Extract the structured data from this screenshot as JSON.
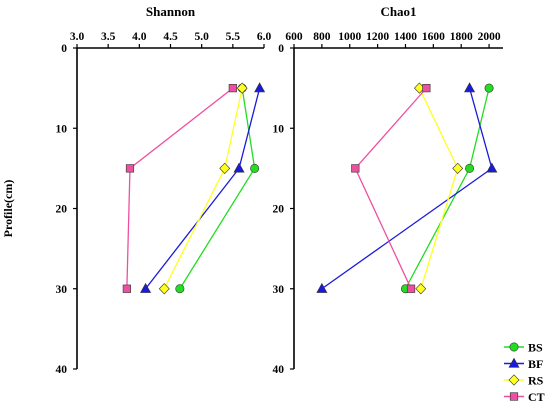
{
  "chart_data": [
    {
      "type": "line",
      "title": "Shannon",
      "ylabel": "Profile(cm)",
      "xlim": [
        3.0,
        6.0
      ],
      "x_ticks": [
        "3.0",
        "3.5",
        "4.0",
        "4.5",
        "5.0",
        "5.5",
        "6.0"
      ],
      "ylim": [
        0,
        40
      ],
      "y_ticks": [
        "0",
        "10",
        "20",
        "30",
        "40"
      ],
      "y_inverted": true,
      "x_axis_position": "top",
      "series": [
        {
          "name": "BS",
          "color": "#22dd22",
          "marker": "circle",
          "points": [
            {
              "x": 5.65,
              "y": 5
            },
            {
              "x": 5.85,
              "y": 15
            },
            {
              "x": 4.65,
              "y": 30
            }
          ]
        },
        {
          "name": "BF",
          "color": "#1a1adb",
          "marker": "triangle",
          "points": [
            {
              "x": 5.93,
              "y": 5
            },
            {
              "x": 5.6,
              "y": 15
            },
            {
              "x": 4.1,
              "y": 30
            }
          ]
        },
        {
          "name": "RS",
          "color": "#ffff22",
          "marker": "diamond",
          "points": [
            {
              "x": 5.65,
              "y": 5
            },
            {
              "x": 5.37,
              "y": 15
            },
            {
              "x": 4.4,
              "y": 30
            }
          ]
        },
        {
          "name": "CT",
          "color": "#ee4fa0",
          "marker": "square",
          "points": [
            {
              "x": 5.5,
              "y": 5
            },
            {
              "x": 3.85,
              "y": 15
            },
            {
              "x": 3.8,
              "y": 30
            }
          ]
        }
      ]
    },
    {
      "type": "line",
      "title": "Chao1",
      "xlim": [
        600,
        2100
      ],
      "x_ticks": [
        "600",
        "800",
        "1000",
        "1200",
        "1400",
        "1600",
        "1800",
        "2000"
      ],
      "ylim": [
        0,
        40
      ],
      "y_ticks": [
        "0",
        "10",
        "20",
        "30",
        "40"
      ],
      "y_inverted": true,
      "x_axis_position": "top",
      "series": [
        {
          "name": "BS",
          "color": "#22dd22",
          "marker": "circle",
          "points": [
            {
              "x": 2000,
              "y": 5
            },
            {
              "x": 1860,
              "y": 15
            },
            {
              "x": 1400,
              "y": 30
            }
          ]
        },
        {
          "name": "BF",
          "color": "#1a1adb",
          "marker": "triangle",
          "points": [
            {
              "x": 1860,
              "y": 5
            },
            {
              "x": 2020,
              "y": 15
            },
            {
              "x": 800,
              "y": 30
            }
          ]
        },
        {
          "name": "RS",
          "color": "#ffff22",
          "marker": "diamond",
          "points": [
            {
              "x": 1500,
              "y": 5
            },
            {
              "x": 1775,
              "y": 15
            },
            {
              "x": 1510,
              "y": 30
            }
          ]
        },
        {
          "name": "CT",
          "color": "#ee4fa0",
          "marker": "square",
          "points": [
            {
              "x": 1550,
              "y": 5
            },
            {
              "x": 1040,
              "y": 15
            },
            {
              "x": 1440,
              "y": 30
            }
          ]
        }
      ]
    }
  ],
  "legend": {
    "placement": "bottom-right",
    "items": [
      {
        "label": "BS",
        "color": "#22dd22",
        "marker": "circle"
      },
      {
        "label": "BF",
        "color": "#1a1adb",
        "marker": "triangle"
      },
      {
        "label": "RS",
        "color": "#ffff22",
        "marker": "diamond"
      },
      {
        "label": "CT",
        "color": "#ee4fa0",
        "marker": "square"
      }
    ]
  }
}
